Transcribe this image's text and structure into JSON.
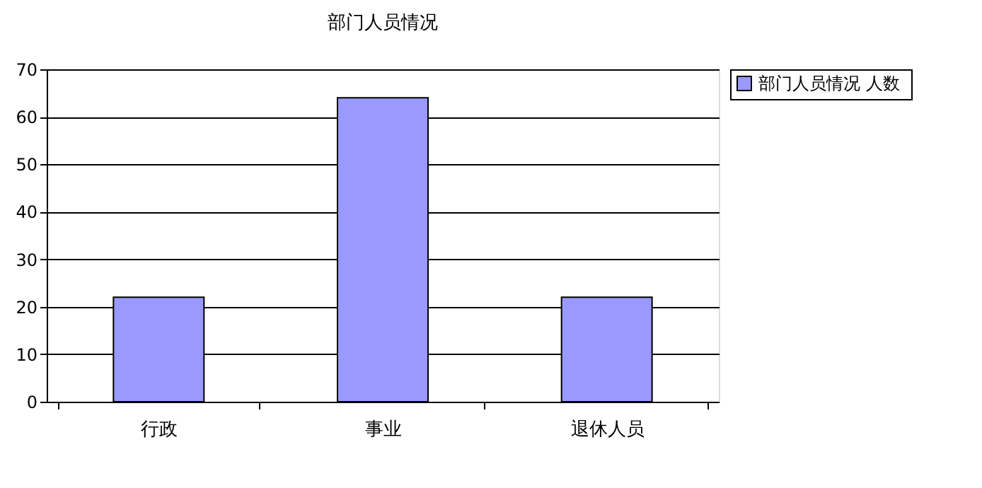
{
  "chart_data": {
    "type": "bar",
    "title": "部门人员情况",
    "categories": [
      "行政",
      "事业",
      "退休人员"
    ],
    "series": [
      {
        "name": "部门人员情况  人数",
        "color": "#9999ff",
        "values": [
          22,
          64,
          22
        ]
      }
    ],
    "ylim": [
      0,
      70
    ],
    "yticks": [
      0,
      10,
      20,
      30,
      40,
      50,
      60,
      70
    ],
    "grid": "y",
    "legend": "right"
  }
}
